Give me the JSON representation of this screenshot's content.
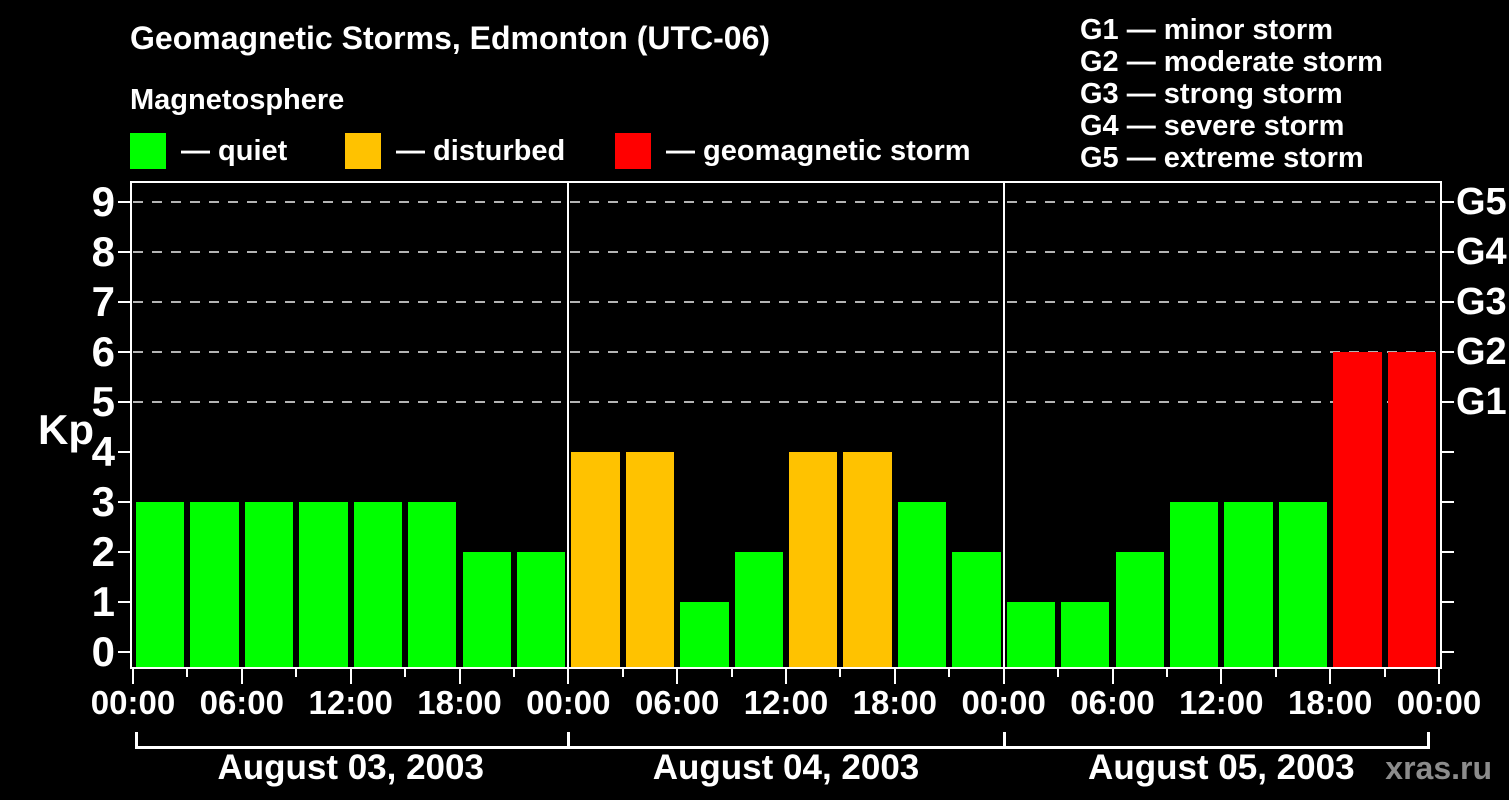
{
  "title": "Geomagnetic Storms, Edmonton (UTC-06)",
  "subtitle": "Magnetosphere",
  "legend": [
    {
      "name": "quiet",
      "label": "— quiet",
      "color": "#00ff00"
    },
    {
      "name": "disturbed",
      "label": "— disturbed",
      "color": "#ffc200"
    },
    {
      "name": "storm",
      "label": "— geomagnetic storm",
      "color": "#ff0000"
    }
  ],
  "gscale_legend": [
    {
      "name": "g1",
      "label": "G1 — minor storm"
    },
    {
      "name": "g2",
      "label": "G2 — moderate storm"
    },
    {
      "name": "g3",
      "label": "G3 — strong storm"
    },
    {
      "name": "g4",
      "label": "G4 — severe storm"
    },
    {
      "name": "g5",
      "label": "G5 — extreme storm"
    }
  ],
  "watermark": "xras.ru",
  "chart_data": {
    "type": "bar",
    "title": "Geomagnetic Storms, Edmonton (UTC-06)",
    "ylabel": "Kp",
    "ylim": [
      0,
      9
    ],
    "yticks": [
      0,
      1,
      2,
      3,
      4,
      5,
      6,
      7,
      8,
      9
    ],
    "dashed_gridlines_at_kp": [
      5,
      6,
      7,
      8,
      9
    ],
    "right_axis_labels": [
      {
        "kp": 5,
        "label": "G1"
      },
      {
        "kp": 6,
        "label": "G2"
      },
      {
        "kp": 7,
        "label": "G3"
      },
      {
        "kp": 8,
        "label": "G4"
      },
      {
        "kp": 9,
        "label": "G5"
      }
    ],
    "interval_hours": 3,
    "time_tick_labels": [
      "00:00",
      "06:00",
      "12:00",
      "18:00"
    ],
    "end_time_label": "00:00",
    "colors": {
      "quiet": "#00ff00",
      "disturbed": "#ffc200",
      "storm": "#ff0000",
      "grid": "#b4b4b4",
      "axis": "#ffffff",
      "background": "#000000"
    },
    "days": [
      {
        "date": "August 03, 2003",
        "kp": [
          3,
          3,
          3,
          3,
          3,
          3,
          2,
          2
        ],
        "status": [
          "quiet",
          "quiet",
          "quiet",
          "quiet",
          "quiet",
          "quiet",
          "quiet",
          "quiet"
        ]
      },
      {
        "date": "August 04, 2003",
        "kp": [
          4,
          4,
          1,
          2,
          4,
          4,
          3,
          2
        ],
        "status": [
          "disturbed",
          "disturbed",
          "quiet",
          "quiet",
          "disturbed",
          "disturbed",
          "quiet",
          "quiet"
        ]
      },
      {
        "date": "August 05, 2003",
        "kp": [
          1,
          1,
          2,
          3,
          3,
          3,
          6,
          6
        ],
        "status": [
          "quiet",
          "quiet",
          "quiet",
          "quiet",
          "quiet",
          "quiet",
          "storm",
          "storm"
        ]
      }
    ],
    "legend_note": "quiet / disturbed / geomagnetic storm color coding",
    "grid": "on",
    "legend_position": "top"
  }
}
